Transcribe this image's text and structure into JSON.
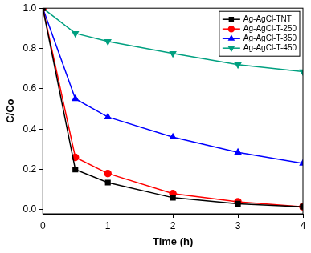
{
  "chart_data": {
    "type": "line",
    "x_label": "Time (h)",
    "y_label": "C/Co",
    "x": [
      0,
      0.5,
      1,
      2,
      3,
      4
    ],
    "series": [
      {
        "name": "Ag-AgCl-TNT",
        "color": "#000000",
        "marker": "square",
        "values": [
          1.0,
          0.2,
          0.135,
          0.06,
          0.03,
          0.015
        ]
      },
      {
        "name": "Ag-AgCl-T-250",
        "color": "#ff0000",
        "marker": "circle",
        "values": [
          1.0,
          0.26,
          0.18,
          0.08,
          0.04,
          0.015
        ]
      },
      {
        "name": "Ag-AgCl-T-350",
        "color": "#0000ff",
        "marker": "triangle",
        "values": [
          1.0,
          0.55,
          0.46,
          0.36,
          0.285,
          0.23
        ]
      },
      {
        "name": "Ag-AgCl-T-450",
        "color": "#00a080",
        "marker": "triangle-down",
        "values": [
          1.0,
          0.875,
          0.835,
          0.775,
          0.72,
          0.685
        ]
      }
    ],
    "xlim": [
      0,
      4
    ],
    "xticks": [
      0,
      1,
      2,
      3,
      4
    ],
    "ylim": [
      -0.02,
      1.0
    ],
    "yticks": [
      {
        "value": 0,
        "label": "0.0"
      },
      {
        "value": 0.2,
        "label": "0.2"
      },
      {
        "value": 0.4,
        "label": "0.4"
      },
      {
        "value": 0.6,
        "label": "0.6"
      },
      {
        "value": 0.8,
        "label": "0.8"
      },
      {
        "value": 1.0,
        "label": "1.0"
      }
    ],
    "grid": false,
    "legend": "upper right"
  }
}
